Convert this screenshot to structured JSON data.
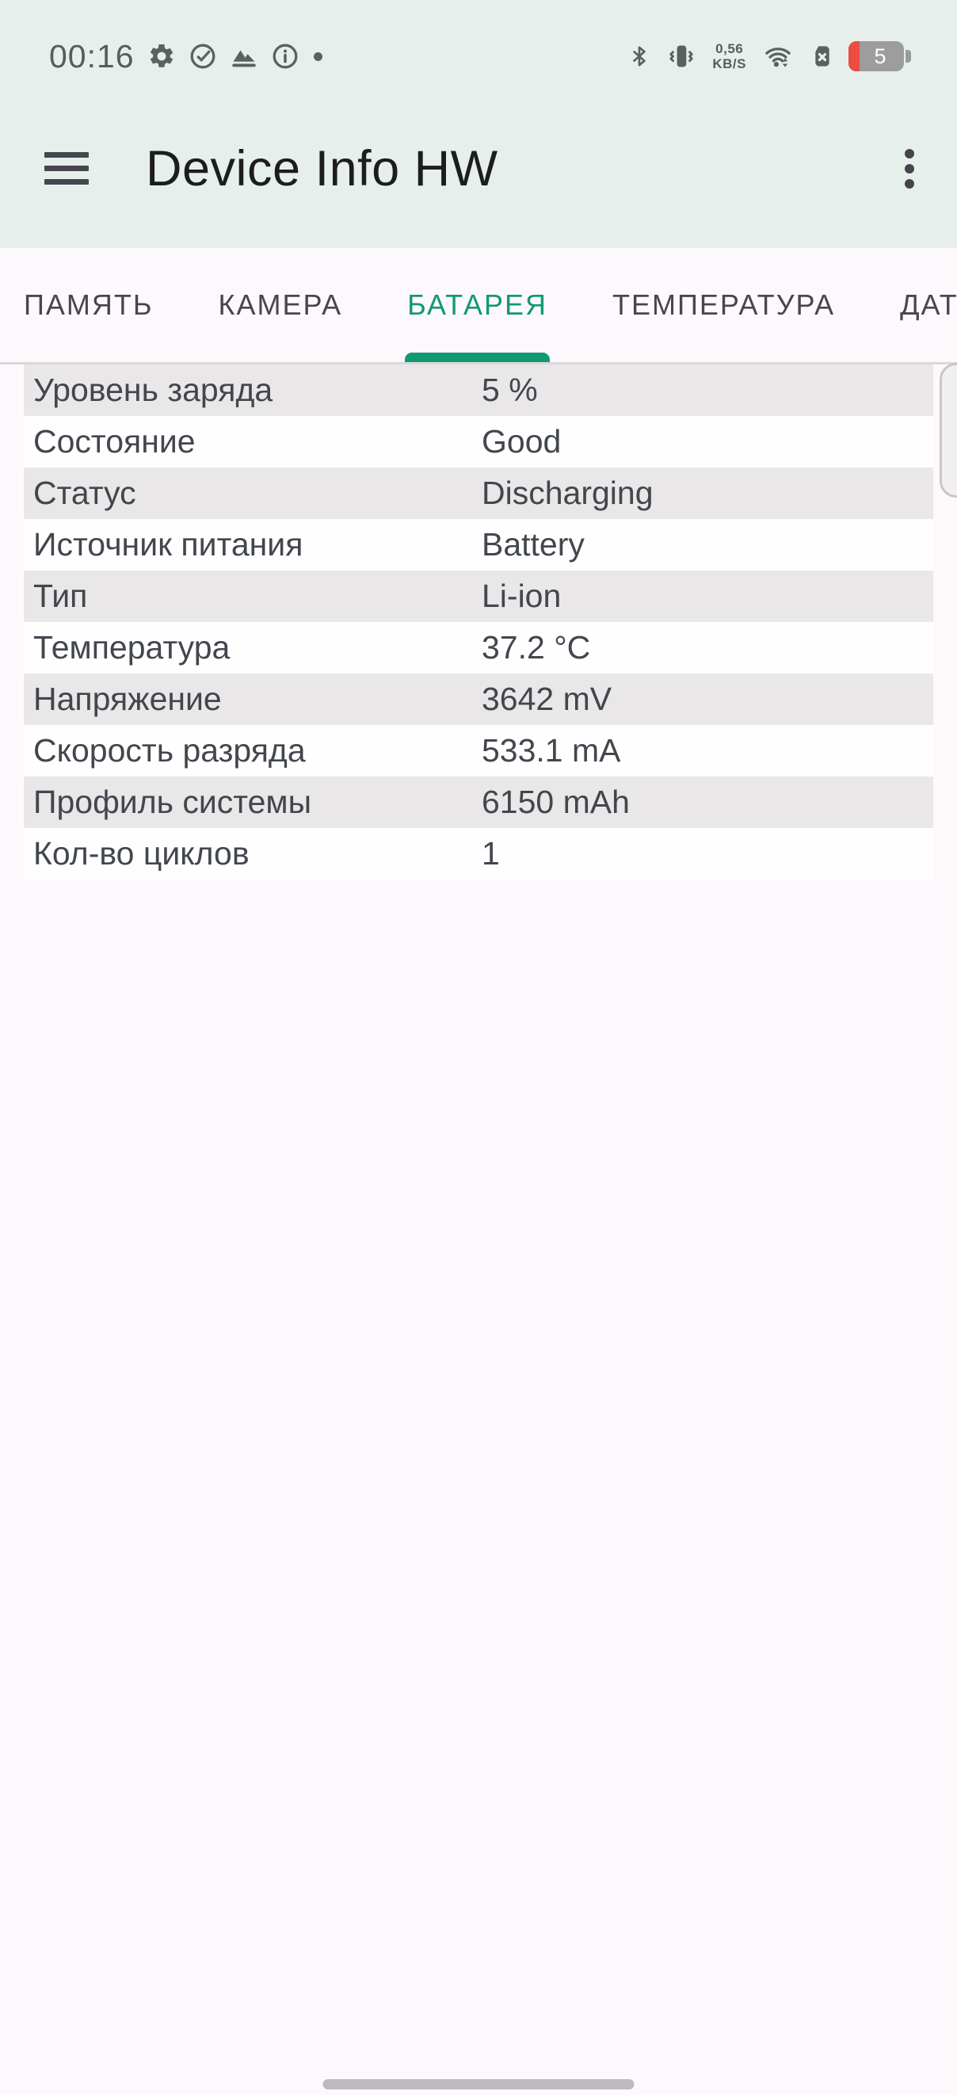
{
  "status_bar": {
    "time": "00:16",
    "left_icons": [
      "gear-icon",
      "check-circle-icon",
      "mountain-icon",
      "info-icon",
      "notification-dot-icon"
    ],
    "right_icons": [
      "bluetooth-icon",
      "vibrate-icon",
      "wifi-icon",
      "sim-error-icon"
    ],
    "network_speed": {
      "value": "0,56",
      "unit": "KB/S"
    },
    "battery_level": "5"
  },
  "app_bar": {
    "title": "Device Info HW"
  },
  "tabs": [
    {
      "key": "memory",
      "label": "ПАМЯТЬ",
      "active": false
    },
    {
      "key": "camera",
      "label": "КАМЕРА",
      "active": false
    },
    {
      "key": "battery",
      "label": "БАТАРЕЯ",
      "active": true
    },
    {
      "key": "temperature",
      "label": "ТЕМПЕРАТУРА",
      "active": false
    },
    {
      "key": "sensors",
      "label": "ДАТ",
      "active": false
    }
  ],
  "battery_table": {
    "rows": [
      {
        "label": "Уровень заряда",
        "value": "5 %"
      },
      {
        "label": "Состояние",
        "value": "Good"
      },
      {
        "label": "Статус",
        "value": "Discharging"
      },
      {
        "label": "Источник питания",
        "value": "Battery"
      },
      {
        "label": "Тип",
        "value": "Li-ion"
      },
      {
        "label": "Температура",
        "value": "37.2 °C"
      },
      {
        "label": "Напряжение",
        "value": "3642 mV"
      },
      {
        "label": "Скорость разряда",
        "value": "533.1 mA"
      },
      {
        "label": "Профиль системы",
        "value": "6150 mAh"
      },
      {
        "label": "Кол-во циклов",
        "value": "1"
      }
    ]
  },
  "colors": {
    "accent_green": "#0f9a71",
    "app_bar_bg": "#e6efec",
    "page_bg": "#fdf8fc",
    "row_alt_bg": "#e9e7e8",
    "battery_low_red": "#ec4c41",
    "status_icon_gray": "#5a615e"
  }
}
